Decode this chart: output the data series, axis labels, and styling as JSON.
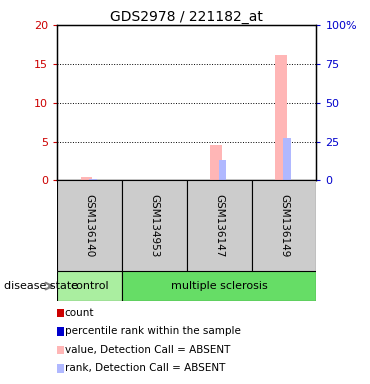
{
  "title": "GDS2978 / 221182_at",
  "samples": [
    "GSM136140",
    "GSM134953",
    "GSM136147",
    "GSM136149"
  ],
  "value_absent": [
    0.5,
    0.12,
    4.5,
    16.1
  ],
  "rank_absent": [
    1.0,
    0.4,
    13.0,
    27.0
  ],
  "ylim_left": [
    0,
    20
  ],
  "ylim_right": [
    0,
    100
  ],
  "yticks_left": [
    0,
    5,
    10,
    15,
    20
  ],
  "yticks_right": [
    0,
    25,
    50,
    75,
    100
  ],
  "ytick_labels_right": [
    "0",
    "25",
    "50",
    "75",
    "100%"
  ],
  "color_count": "#cc0000",
  "color_rank_blue": "#0000cc",
  "color_value_absent": "#ffb6b6",
  "color_rank_absent": "#b0b8ff",
  "color_control_bg": "#aaeea0",
  "color_ms_bg": "#66dd66",
  "color_sample_bg": "#cccccc",
  "legend_items": [
    {
      "label": "count",
      "color": "#cc0000"
    },
    {
      "label": "percentile rank within the sample",
      "color": "#0000cc"
    },
    {
      "label": "value, Detection Call = ABSENT",
      "color": "#ffb6b6"
    },
    {
      "label": "rank, Detection Call = ABSENT",
      "color": "#b0b8ff"
    }
  ]
}
